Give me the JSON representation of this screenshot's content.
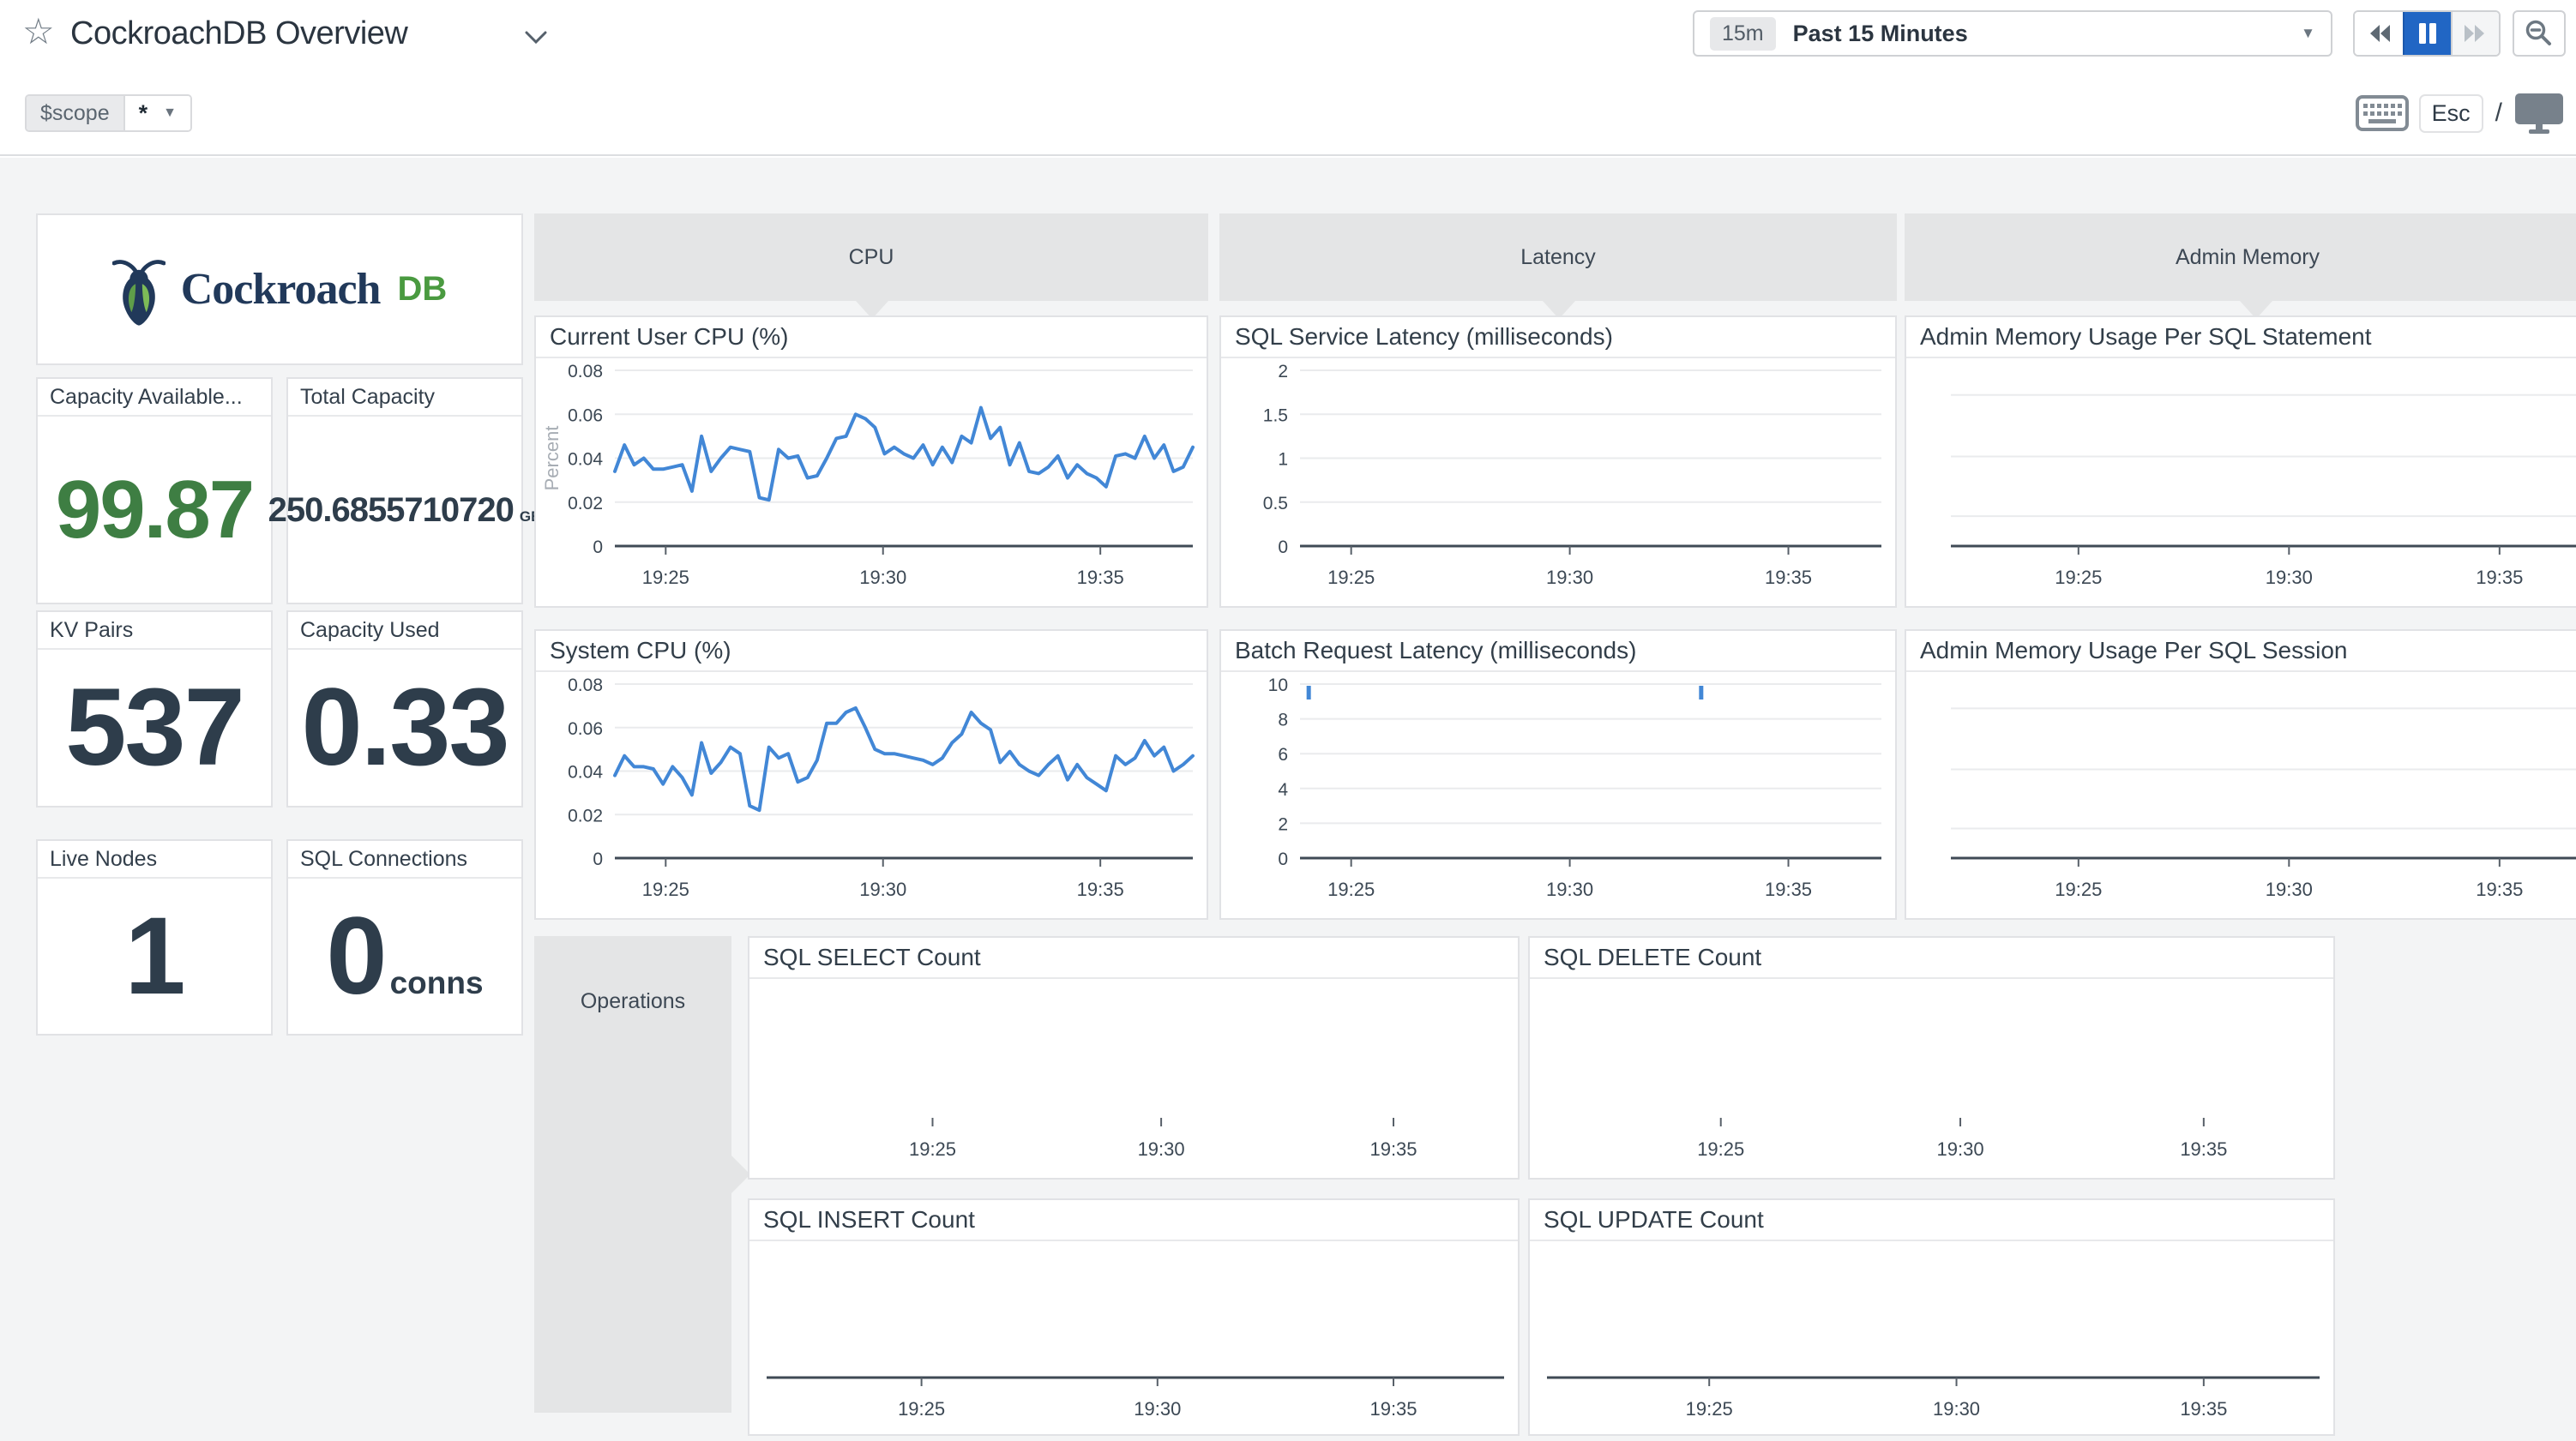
{
  "page": {
    "title": "CockroachDB Overview"
  },
  "toolbar": {
    "time_badge": "15m",
    "time_label": "Past 15 Minutes",
    "esc_label": "Esc",
    "slash": "/"
  },
  "scope": {
    "name": "$scope",
    "value": "*"
  },
  "logo": {
    "word": "Cockroach",
    "suffix": "DB"
  },
  "stats": [
    {
      "title": "Capacity Available...",
      "value": "99.87",
      "unit": ""
    },
    {
      "title": "Total Capacity",
      "value": "250.6855710720",
      "unit": "GB"
    },
    {
      "title": "KV Pairs",
      "value": "537",
      "unit": ""
    },
    {
      "title": "Capacity Used",
      "value": "0.33",
      "unit": ""
    },
    {
      "title": "Live Nodes",
      "value": "1",
      "unit": ""
    },
    {
      "title": "SQL Connections",
      "value": "0",
      "unit": "conns"
    }
  ],
  "groups": [
    {
      "label": "CPU"
    },
    {
      "label": "Latency"
    },
    {
      "label": "Admin Memory"
    },
    {
      "label": "Operations"
    }
  ],
  "colors": {
    "line_blue": "#4287d6",
    "pause_blue": "#2166c4",
    "value_green": "#3e7e43",
    "navy_text": "#2e3d4b",
    "header_gray": "#e4e5e6",
    "canvas_gray": "#f3f4f5"
  },
  "chart_data": [
    {
      "type": "line",
      "title": "Current User CPU (%)",
      "ylabel": "Percent",
      "ymax": 0.08,
      "yticks": [
        [
          0,
          "0"
        ],
        [
          0.02,
          "0.02"
        ],
        [
          0.04,
          "0.04"
        ],
        [
          0.06,
          "0.06"
        ],
        [
          0.08,
          "0.08"
        ]
      ],
      "xticks": [
        "19:25",
        "19:30",
        "19:35"
      ],
      "series": [
        {
          "name": "current user cpu",
          "values": [
            0.034,
            0.046,
            0.037,
            0.04,
            0.035,
            0.035,
            0.036,
            0.037,
            0.025,
            0.05,
            0.034,
            0.04,
            0.045,
            0.044,
            0.043,
            0.022,
            0.021,
            0.044,
            0.04,
            0.041,
            0.031,
            0.032,
            0.04,
            0.049,
            0.05,
            0.06,
            0.058,
            0.054,
            0.042,
            0.045,
            0.042,
            0.04,
            0.046,
            0.037,
            0.045,
            0.038,
            0.05,
            0.047,
            0.063,
            0.049,
            0.054,
            0.037,
            0.047,
            0.034,
            0.033,
            0.036,
            0.041,
            0.031,
            0.037,
            0.033,
            0.031,
            0.027,
            0.041,
            0.042,
            0.04,
            0.05,
            0.04,
            0.046,
            0.034,
            0.036,
            0.045
          ]
        }
      ]
    },
    {
      "type": "line",
      "title": "System CPU (%)",
      "ylabel": "",
      "ymax": 0.08,
      "yticks": [
        [
          0,
          "0"
        ],
        [
          0.02,
          "0.02"
        ],
        [
          0.04,
          "0.04"
        ],
        [
          0.06,
          "0.06"
        ],
        [
          0.08,
          "0.08"
        ]
      ],
      "xticks": [
        "19:25",
        "19:30",
        "19:35"
      ],
      "series": [
        {
          "name": "system cpu",
          "values": [
            0.038,
            0.047,
            0.042,
            0.042,
            0.041,
            0.034,
            0.042,
            0.037,
            0.029,
            0.053,
            0.039,
            0.044,
            0.051,
            0.048,
            0.024,
            0.022,
            0.051,
            0.046,
            0.048,
            0.035,
            0.037,
            0.045,
            0.062,
            0.062,
            0.067,
            0.069,
            0.06,
            0.05,
            0.048,
            0.048,
            0.047,
            0.046,
            0.045,
            0.043,
            0.046,
            0.053,
            0.057,
            0.067,
            0.062,
            0.059,
            0.044,
            0.049,
            0.043,
            0.04,
            0.038,
            0.043,
            0.047,
            0.036,
            0.043,
            0.037,
            0.034,
            0.031,
            0.047,
            0.043,
            0.046,
            0.054,
            0.047,
            0.051,
            0.04,
            0.043,
            0.047
          ]
        }
      ]
    },
    {
      "type": "line",
      "title": "SQL Service Latency (milliseconds)",
      "ylabel": "",
      "ymax": 2,
      "yticks": [
        [
          0,
          "0"
        ],
        [
          0.5,
          "0.5"
        ],
        [
          1,
          "1"
        ],
        [
          1.5,
          "1.5"
        ],
        [
          2,
          "2"
        ]
      ],
      "xticks": [
        "19:25",
        "19:30",
        "19:35"
      ],
      "series": []
    },
    {
      "type": "line",
      "title": "Batch Request Latency (milliseconds)",
      "ylabel": "",
      "ymax": 10,
      "yticks": [
        [
          0,
          "0"
        ],
        [
          2,
          "2"
        ],
        [
          4,
          "4"
        ],
        [
          6,
          "6"
        ],
        [
          8,
          "8"
        ],
        [
          10,
          "10"
        ]
      ],
      "xticks": [
        "19:25",
        "19:30",
        "19:35"
      ],
      "series": [],
      "spikes": [
        {
          "x": 0.015,
          "value": 10
        },
        {
          "x": 0.69,
          "value": 10
        }
      ]
    },
    {
      "type": "line",
      "title": "Admin Memory Usage Per SQL Statement",
      "ylabel": "",
      "xticks": [
        "19:25",
        "19:30",
        "19:35"
      ],
      "series": []
    },
    {
      "type": "line",
      "title": "Admin Memory Usage Per SQL Session",
      "ylabel": "",
      "xticks": [
        "19:25",
        "19:30",
        "19:35"
      ],
      "series": []
    },
    {
      "type": "line",
      "title": "SQL SELECT Count",
      "ylabel": "",
      "xticks": [
        "19:25",
        "19:30",
        "19:35"
      ],
      "series": []
    },
    {
      "type": "line",
      "title": "SQL DELETE Count",
      "ylabel": "",
      "xticks": [
        "19:25",
        "19:30",
        "19:35"
      ],
      "series": []
    },
    {
      "type": "line",
      "title": "SQL INSERT Count",
      "ylabel": "",
      "xticks": [
        "19:25",
        "19:30",
        "19:35"
      ],
      "series": []
    },
    {
      "type": "line",
      "title": "SQL UPDATE Count",
      "ylabel": "",
      "xticks": [
        "19:25",
        "19:30",
        "19:35"
      ],
      "series": []
    }
  ]
}
